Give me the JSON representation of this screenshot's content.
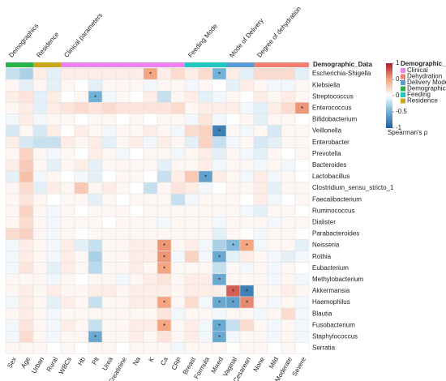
{
  "chart_data": {
    "type": "heatmap",
    "annotation_title": "Demographic_Data",
    "groups": [
      {
        "label": "Demographics",
        "color": "#2ab24a",
        "columns": [
          "Sex",
          "Age"
        ]
      },
      {
        "label": "Residence",
        "color": "#c9a718",
        "columns": [
          "Urban",
          "Rural"
        ]
      },
      {
        "label": "Clinical parameters",
        "color": "#ee82ee",
        "columns": [
          "WBCs",
          "Hb",
          "Plt",
          "Urea",
          "Creatinine",
          "Na",
          "K",
          "Ca",
          "CRP"
        ]
      },
      {
        "label": "Feeding Mode",
        "color": "#22c8c0",
        "columns": [
          "Breast",
          "Formula",
          "Mixed"
        ]
      },
      {
        "label": "Mode of Delivery",
        "color": "#5b9bd5",
        "columns": [
          "Vaginal",
          "Cesarean"
        ]
      },
      {
        "label": "Degree of dehydration",
        "color": "#f08070",
        "columns": [
          "None",
          "Mild",
          "Moderate",
          "Severe"
        ]
      }
    ],
    "rows": [
      "Escherichia-Shigella",
      "Klebsiella",
      "Streptococcus",
      "Enterococcus",
      "Bifidobacterium",
      "Veillonella",
      "Enterobacter",
      "Prevotella",
      "Bacteroides",
      "Lactobacillus",
      "Clostridium_sensu_stricto_1",
      "Faecalibacterium",
      "Ruminococcus",
      "Dialister",
      "Parabacteroides",
      "Neisseria",
      "Rothia",
      "Eubacterium",
      "Methylobacterium",
      "Akkermansia",
      "Haemophilus",
      "Blautia",
      "Fusobacterium",
      "Staphylococcus",
      "Serratia"
    ],
    "values": [
      [
        -0.2,
        -0.3,
        0.1,
        -0.1,
        0.1,
        0.1,
        0.1,
        0.1,
        0.1,
        0.1,
        0.5,
        0.1,
        0.2,
        0.1,
        0.2,
        -0.5,
        0.1,
        -0.1,
        0.2,
        0.2,
        0.2,
        -0.1
      ],
      [
        0.05,
        -0.1,
        0.05,
        -0.1,
        0.05,
        0,
        -0.1,
        0.05,
        0.05,
        0.05,
        -0.05,
        0.05,
        0.05,
        -0.05,
        0.05,
        0,
        -0.1,
        0.1,
        0.05,
        -0.05,
        -0.05,
        0.05
      ],
      [
        0.1,
        0.15,
        -0.1,
        0.1,
        0,
        0.05,
        -0.5,
        -0.05,
        0.05,
        0,
        0.1,
        -0.2,
        0.05,
        0.1,
        -0.1,
        -0.05,
        0.05,
        0,
        0.1,
        0.05,
        0.1,
        0.05
      ],
      [
        0.05,
        0.1,
        -0.1,
        0.1,
        0.15,
        0.2,
        0.15,
        0.2,
        0.15,
        0.15,
        0.15,
        0.15,
        0.2,
        0.05,
        0.1,
        0.1,
        0.1,
        -0.05,
        -0.1,
        0.1,
        0.2,
        0.55
      ],
      [
        -0.05,
        0.1,
        -0.05,
        0.05,
        0.05,
        0,
        0.05,
        0.05,
        0,
        0.05,
        0,
        0.05,
        0.05,
        -0.05,
        0.15,
        -0.05,
        0,
        0.05,
        -0.1,
        0.05,
        0.05,
        0
      ],
      [
        -0.15,
        0.05,
        -0.15,
        0.1,
        0,
        0.1,
        0.05,
        -0.05,
        0.05,
        0.05,
        0.1,
        0.05,
        -0.05,
        0.2,
        0.25,
        -0.8,
        0.05,
        -0.05,
        0.05,
        -0.15,
        0.05,
        0.05
      ],
      [
        0.1,
        -0.15,
        -0.2,
        -0.2,
        0.1,
        0.05,
        0.1,
        -0.1,
        0.05,
        0.1,
        -0.05,
        0.1,
        0.05,
        -0.1,
        0.25,
        -0.2,
        -0.05,
        0.05,
        -0.15,
        -0.1,
        0.05,
        0.05
      ],
      [
        0.05,
        0.25,
        0.05,
        -0.05,
        0.05,
        0,
        0.1,
        0.05,
        -0.05,
        0,
        0.05,
        0.05,
        -0.05,
        0.05,
        0.1,
        -0.1,
        0.05,
        -0.05,
        -0.1,
        0.05,
        0,
        0.05
      ],
      [
        0.1,
        0.3,
        0.05,
        -0.1,
        0.05,
        0.1,
        -0.1,
        0.05,
        0.05,
        0.05,
        0.05,
        -0.1,
        0.05,
        0.05,
        0.1,
        -0.05,
        0.05,
        0.05,
        -0.05,
        0.05,
        -0.05,
        0
      ],
      [
        -0.1,
        0.35,
        -0.05,
        0.05,
        0,
        -0.05,
        -0.1,
        0,
        0.05,
        0.05,
        0,
        -0.2,
        0.1,
        0.3,
        -0.6,
        0.1,
        0.05,
        -0.05,
        0.1,
        -0.05,
        0.05,
        0
      ],
      [
        0.05,
        0.2,
        -0.1,
        0.1,
        0.05,
        0.3,
        0.05,
        0.1,
        0.05,
        0,
        -0.2,
        0.05,
        0.15,
        0.1,
        -0.05,
        0,
        0.05,
        0.05,
        0.1,
        -0.1,
        0.05,
        0.05
      ],
      [
        0.05,
        0.15,
        0.05,
        0,
        0.05,
        0.05,
        -0.1,
        0.05,
        0,
        0.05,
        0.05,
        0.05,
        -0.2,
        -0.05,
        0.05,
        0.05,
        0.05,
        0,
        0.1,
        -0.05,
        0,
        0.05
      ],
      [
        0.05,
        0.25,
        0.05,
        -0.05,
        0.05,
        0,
        0.05,
        0.05,
        0.05,
        0,
        0.05,
        0.05,
        0.05,
        0.05,
        0.05,
        0.05,
        0.05,
        -0.05,
        -0.1,
        0.05,
        0.05,
        0
      ],
      [
        0.05,
        0.2,
        0.05,
        -0.05,
        0.05,
        0.05,
        0.05,
        0,
        0.05,
        0.05,
        0.05,
        -0.05,
        0.05,
        0.05,
        0.05,
        -0.05,
        0.05,
        0.05,
        0.05,
        -0.05,
        0.05,
        0.05
      ],
      [
        0.2,
        0.25,
        0.05,
        -0.05,
        0.05,
        0,
        0.05,
        0.05,
        0.05,
        0.05,
        0.05,
        0.05,
        0.05,
        0.05,
        0.05,
        -0.1,
        0.05,
        0,
        -0.05,
        0.05,
        0.05,
        0
      ],
      [
        -0.05,
        0.1,
        0.05,
        -0.05,
        0.1,
        -0.1,
        -0.2,
        0.05,
        0.05,
        0.1,
        0.1,
        0.55,
        0.05,
        0.1,
        -0.05,
        -0.3,
        -0.45,
        0.5,
        -0.05,
        0.05,
        0.05,
        -0.1
      ],
      [
        -0.05,
        0.1,
        0.05,
        -0.05,
        0.1,
        0.05,
        -0.3,
        0.05,
        0.05,
        0.1,
        0.1,
        0.55,
        -0.05,
        0.25,
        -0.05,
        -0.55,
        -0.1,
        0.1,
        0.05,
        -0.05,
        -0.1,
        -0.05
      ],
      [
        -0.05,
        0.15,
        0.05,
        -0.1,
        0.1,
        0.05,
        -0.25,
        0.05,
        0.05,
        0.1,
        0.05,
        0.5,
        0.05,
        0.05,
        0.05,
        -0.2,
        0.05,
        -0.05,
        0.05,
        -0.05,
        0.05,
        0
      ],
      [
        0.05,
        0.05,
        0.05,
        -0.05,
        0.05,
        0,
        0.05,
        0.05,
        -0.05,
        0.05,
        0.1,
        0.15,
        0.05,
        0.1,
        0.1,
        -0.55,
        0.05,
        0.05,
        0.05,
        -0.05,
        0.05,
        -0.05
      ],
      [
        0.05,
        0.1,
        0.05,
        0.1,
        0.05,
        0.05,
        0.1,
        0.1,
        0.05,
        0.1,
        0.1,
        0.1,
        0.05,
        0.1,
        0.1,
        0.1,
        0.75,
        -0.8,
        0.05,
        0.05,
        0.1,
        0.05
      ],
      [
        -0.05,
        0.1,
        0.05,
        -0.1,
        0.1,
        0.05,
        -0.2,
        0.05,
        0.05,
        0.1,
        0.1,
        0.5,
        0.05,
        0.2,
        -0.05,
        -0.55,
        -0.6,
        0.6,
        0.05,
        -0.05,
        0.05,
        -0.05
      ],
      [
        0.05,
        0.1,
        0.05,
        -0.05,
        0.05,
        0.05,
        0.05,
        0.05,
        0.05,
        0.05,
        0.05,
        0.15,
        -0.05,
        0.05,
        0.05,
        -0.05,
        0.05,
        0.05,
        -0.05,
        0.05,
        0.2,
        -0.05
      ],
      [
        -0.05,
        0.15,
        0.05,
        -0.05,
        0.1,
        0.05,
        -0.2,
        0.05,
        0.05,
        0.1,
        0.1,
        0.5,
        0.05,
        0.1,
        -0.05,
        -0.55,
        -0.2,
        0.2,
        0.05,
        -0.05,
        0.05,
        -0.05
      ],
      [
        -0.05,
        0.2,
        0.05,
        -0.05,
        0.05,
        0.05,
        -0.55,
        0.05,
        0.05,
        0.1,
        0.05,
        0.15,
        0.05,
        0.1,
        -0.05,
        -0.55,
        -0.05,
        0.05,
        0.05,
        -0.05,
        0.05,
        -0.05
      ],
      [
        0.05,
        0.05,
        0.05,
        0,
        0.05,
        0,
        0.05,
        0.05,
        0,
        0.05,
        0.05,
        0.05,
        -0.05,
        0.05,
        0.05,
        0.05,
        0,
        0.05,
        0.05,
        0,
        0.05,
        0
      ]
    ],
    "annotations": [
      {
        "row": "Escherichia-Shigella",
        "column": "K",
        "text": "*"
      },
      {
        "row": "Escherichia-Shigella",
        "column": "Mixed",
        "text": "*"
      },
      {
        "row": "Streptococcus",
        "column": "Plt",
        "text": "*"
      },
      {
        "row": "Enterococcus",
        "column": "Severe",
        "text": "*"
      },
      {
        "row": "Veillonella",
        "column": "Mixed",
        "text": "*"
      },
      {
        "row": "Lactobacillus",
        "column": "Formula",
        "text": "*"
      },
      {
        "row": "Neisseria",
        "column": "Ca",
        "text": "*"
      },
      {
        "row": "Neisseria",
        "column": "Vaginal",
        "text": "*"
      },
      {
        "row": "Neisseria",
        "column": "Cesarean",
        "text": "*"
      },
      {
        "row": "Rothia",
        "column": "Ca",
        "text": "*"
      },
      {
        "row": "Rothia",
        "column": "Mixed",
        "text": "*"
      },
      {
        "row": "Eubacterium",
        "column": "Ca",
        "text": "*"
      },
      {
        "row": "Methylobacterium",
        "column": "Mixed",
        "text": "*"
      },
      {
        "row": "Akkermansia",
        "column": "Vaginal",
        "text": "*"
      },
      {
        "row": "Akkermansia",
        "column": "Cesarean",
        "text": "*"
      },
      {
        "row": "Haemophilus",
        "column": "Ca",
        "text": "*"
      },
      {
        "row": "Haemophilus",
        "column": "Mixed",
        "text": "*"
      },
      {
        "row": "Haemophilus",
        "column": "Vaginal",
        "text": "*"
      },
      {
        "row": "Haemophilus",
        "column": "Cesarean",
        "text": "*"
      },
      {
        "row": "Fusobacterium",
        "column": "Ca",
        "text": "*"
      },
      {
        "row": "Fusobacterium",
        "column": "Mixed",
        "text": "*"
      },
      {
        "row": "Staphylococcus",
        "column": "Plt",
        "text": "*"
      },
      {
        "row": "Staphylococcus",
        "column": "Mixed",
        "text": "*"
      }
    ],
    "colorscale": [
      [
        -1,
        "#1c5f9e"
      ],
      [
        -0.5,
        "#73b2d8"
      ],
      [
        0,
        "#ffffff"
      ],
      [
        0.5,
        "#f4a582"
      ],
      [
        1,
        "#b2182b"
      ]
    ],
    "colorbar": {
      "title": "Spearman's ρ",
      "lim": [
        -1,
        1
      ],
      "ticks": [
        1,
        0.5,
        0,
        -0.5,
        -1
      ]
    },
    "legend_title": "Demographic_Data",
    "legend": [
      {
        "name": "Clinical",
        "color": "#ee82ee"
      },
      {
        "name": "Dehydration",
        "color": "#f08070"
      },
      {
        "name": "Delivery Mode",
        "color": "#5b9bd5"
      },
      {
        "name": "Demographics",
        "color": "#2ab24a"
      },
      {
        "name": "Feeding",
        "color": "#22c8c0"
      },
      {
        "name": "Residence",
        "color": "#c9a718"
      }
    ]
  }
}
